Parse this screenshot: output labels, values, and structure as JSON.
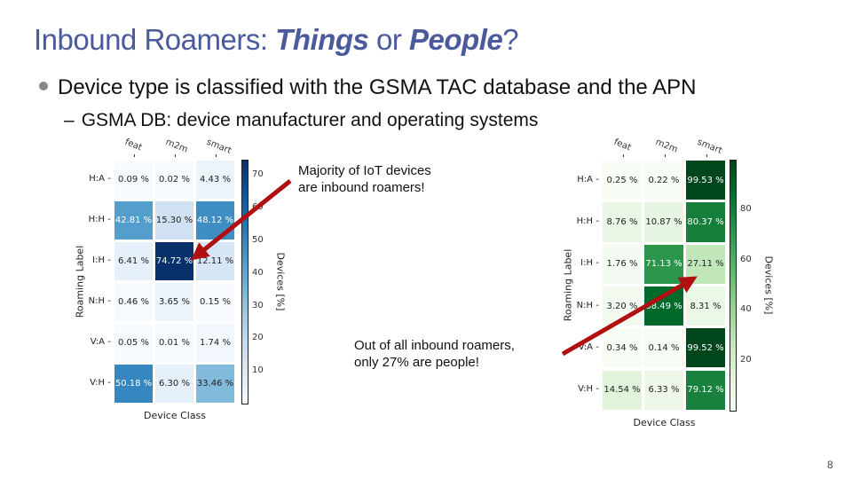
{
  "slide": {
    "title_prefix": "Inbound Roamers: ",
    "title_things": "Things",
    "title_or": " or ",
    "title_people": "People",
    "title_suffix": "?",
    "bullet_1": "Device type is classified with the GSMA TAC database and the APN",
    "bullet_2": "GSMA DB: device manufacturer and operating systems",
    "bullet_2_dash": "–",
    "annotation_1_line1": "Majority of IoT devices",
    "annotation_1_line2": "are inbound roamers!",
    "annotation_2_line1": "Out of all inbound roamers,",
    "annotation_2_line2": "only 27% are people!",
    "page_number": "8",
    "arrow_color": "#b01010"
  },
  "chart_data": [
    {
      "type": "heatmap",
      "title": "",
      "colormap": "Blues",
      "normalization": "per column (device class)",
      "categories_x": [
        "feat",
        "m2m",
        "smart"
      ],
      "categories_y": [
        "H:A",
        "H:H",
        "I:H",
        "N:H",
        "V:A",
        "V:H"
      ],
      "values": [
        [
          0.09,
          0.02,
          4.43
        ],
        [
          42.81,
          15.3,
          48.12
        ],
        [
          6.41,
          74.72,
          12.11
        ],
        [
          0.46,
          3.65,
          0.15
        ],
        [
          0.05,
          0.01,
          1.74
        ],
        [
          50.18,
          6.3,
          33.46
        ]
      ],
      "labels": [
        [
          "0.09 %",
          "0.02 %",
          "4.43 %"
        ],
        [
          "42.81 %",
          "15.30 %",
          "48.12 %"
        ],
        [
          "6.41 %",
          "74.72 %",
          "12.11 %"
        ],
        [
          "0.46 %",
          "3.65 %",
          "0.15 %"
        ],
        [
          "0.05 %",
          "0.01 %",
          "1.74 %"
        ],
        [
          "50.18 %",
          "6.30 %",
          "33.46 %"
        ]
      ],
      "xlabel": "Device Class",
      "ylabel": "Roaming Label",
      "colorbar_label": "Devices [%]",
      "colorbar_ticks": [
        "70",
        "60",
        "50",
        "40",
        "30",
        "20",
        "10"
      ],
      "colorbar_range": [
        0,
        75
      ]
    },
    {
      "type": "heatmap",
      "title": "",
      "colormap": "Greens",
      "normalization": "per row (roaming label)",
      "categories_x": [
        "feat",
        "m2m",
        "smart"
      ],
      "categories_y": [
        "H:A",
        "H:H",
        "I:H",
        "N:H",
        "V:A",
        "V:H"
      ],
      "values": [
        [
          0.25,
          0.22,
          99.53
        ],
        [
          8.76,
          10.87,
          80.37
        ],
        [
          1.76,
          71.13,
          27.11
        ],
        [
          3.2,
          88.49,
          8.31
        ],
        [
          0.34,
          0.14,
          99.52
        ],
        [
          14.54,
          6.33,
          79.12
        ]
      ],
      "labels": [
        [
          "0.25 %",
          "0.22 %",
          "99.53 %"
        ],
        [
          "8.76 %",
          "10.87 %",
          "80.37 %"
        ],
        [
          "1.76 %",
          "71.13 %",
          "27.11 %"
        ],
        [
          "3.20 %",
          "88.49 %",
          "8.31 %"
        ],
        [
          "0.34 %",
          "0.14 %",
          "99.52 %"
        ],
        [
          "14.54 %",
          "6.33 %",
          "79.12 %"
        ]
      ],
      "xlabel": "Device Class",
      "ylabel": "Roaming Label",
      "colorbar_label": "Devices [%]",
      "colorbar_ticks": [
        "80",
        "60",
        "40",
        "20"
      ],
      "colorbar_range": [
        0,
        100
      ]
    }
  ]
}
